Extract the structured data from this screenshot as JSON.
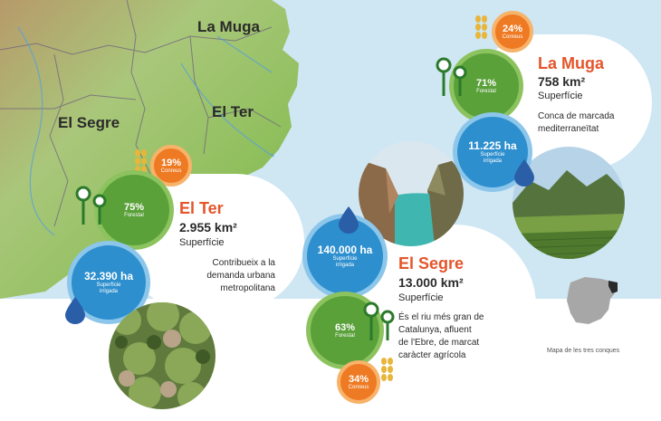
{
  "map_labels": {
    "la_muga": "La Muga",
    "el_segre": "El Segre",
    "el_ter": "El Ter"
  },
  "la_muga": {
    "title": "La Muga",
    "area": "758 km²",
    "area_label": "Superfície",
    "description_lines": [
      "Conca de marcada",
      "mediterraneïtat"
    ],
    "crops_pct": "24%",
    "crops_label": "Conreus",
    "forest_pct": "71%",
    "forest_label": "Forestal",
    "irrigated": "11.225 ha",
    "irrigated_label_lines": [
      "Superfície",
      "irrigada"
    ]
  },
  "el_ter": {
    "title": "El Ter",
    "area": "2.955 km²",
    "area_label": "Superfície",
    "description_lines": [
      "Contribueix a la",
      "demanda urbana",
      "metropolitana"
    ],
    "crops_pct": "19%",
    "crops_label": "Conreus",
    "forest_pct": "75%",
    "forest_label": "Forestal",
    "irrigated": "32.390 ha",
    "irrigated_label_lines": [
      "Superfície",
      "irrigada"
    ]
  },
  "el_segre": {
    "title": "El Segre",
    "area": "13.000 km²",
    "area_label": "Superfície",
    "description_lines": [
      "És el riu més gran de",
      "Catalunya, afluent",
      "de l'Ebre, de marcat",
      "caràcter agrícola"
    ],
    "crops_pct": "34%",
    "crops_label": "Conreus",
    "forest_pct": "63%",
    "forest_label": "Forestal",
    "irrigated": "140.000 ha",
    "irrigated_label_lines": [
      "Superfície",
      "irrigada"
    ]
  },
  "inset_caption": "Mapa de les tres conques",
  "colors": {
    "sea": "#cfe6f3",
    "land": "#9dc36a",
    "title_red": "#e4552b",
    "forest_green": "#5aa13a",
    "irrigated_blue": "#2d8fce",
    "crops_orange": "#ee7a23"
  },
  "icons": [
    "tree-icon",
    "water-drop-icon",
    "wheat-icon"
  ]
}
